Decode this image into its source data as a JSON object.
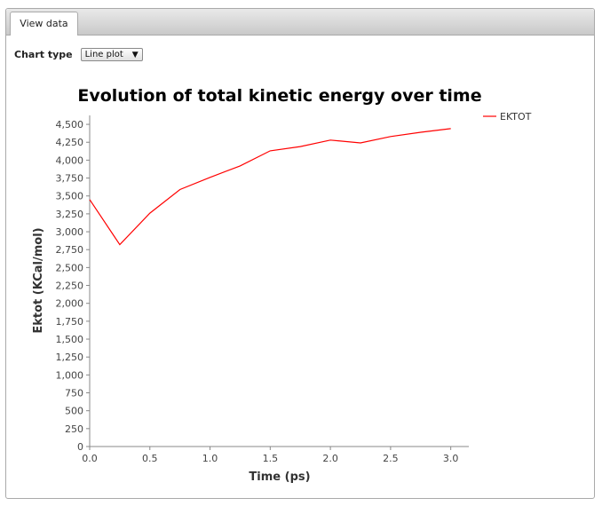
{
  "tabs": [
    {
      "label": "View data"
    }
  ],
  "controls": {
    "chart_type_label": "Chart type",
    "chart_type_value": "Line plot"
  },
  "chart_data": {
    "type": "line",
    "title": "Evolution of total kinetic energy over time",
    "xlabel": "Time (ps)",
    "ylabel": "Ektot (KCal/mol)",
    "xlim": [
      0,
      3.15
    ],
    "ylim": [
      0,
      4625
    ],
    "xticks": [
      0,
      0.5,
      1,
      1.5,
      2,
      2.5,
      3
    ],
    "xtick_labels": [
      "0.0",
      "0.5",
      "1.0",
      "1.5",
      "2.0",
      "2.5",
      "3.0"
    ],
    "yticks": [
      0,
      250,
      500,
      750,
      1000,
      1250,
      1500,
      1750,
      2000,
      2250,
      2500,
      2750,
      3000,
      3250,
      3500,
      3750,
      4000,
      4250,
      4500
    ],
    "ytick_labels": [
      "0",
      "250",
      "500",
      "750",
      "1,000",
      "1,250",
      "1,500",
      "1,750",
      "2,000",
      "2,250",
      "2,500",
      "2,750",
      "3,000",
      "3,250",
      "3,500",
      "3,750",
      "4,000",
      "4,250",
      "4,500"
    ],
    "grid": false,
    "legend_position": "right",
    "series": [
      {
        "name": "EKTOT",
        "color": "#ff0000",
        "x": [
          0,
          0.25,
          0.5,
          0.75,
          1.0,
          1.25,
          1.5,
          1.75,
          2.0,
          2.25,
          2.5,
          2.75,
          3.0
        ],
        "y": [
          3450,
          2820,
          3260,
          3590,
          3760,
          3920,
          4130,
          4190,
          4280,
          4240,
          4330,
          4390,
          4440
        ]
      }
    ]
  }
}
